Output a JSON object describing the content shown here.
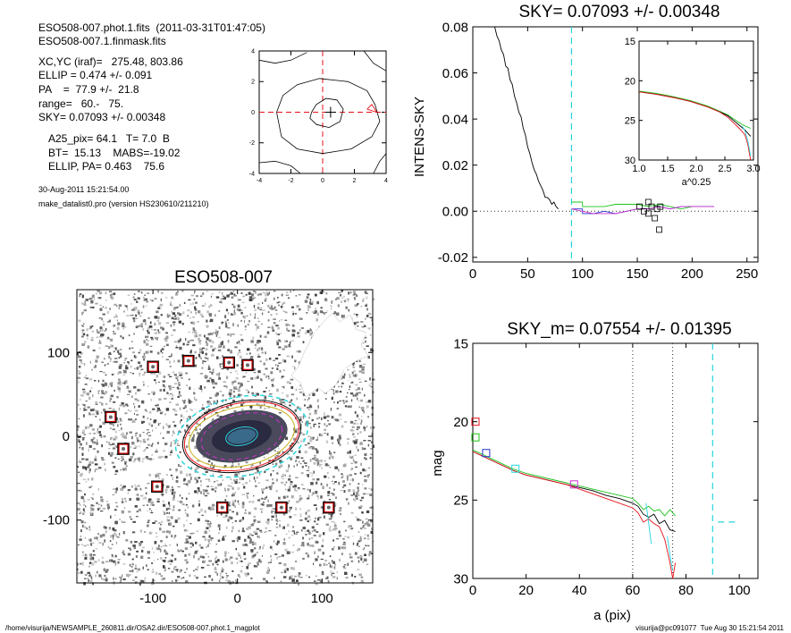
{
  "header": {
    "lines": [
      "ESO508-007.phot.1.fits  (2011-03-31T01:47:05)",
      "ESO508-007.1.finmask.fits"
    ],
    "params": [
      "XC,YC (iraf)=   275.48, 803.86",
      "ELLIP = 0.474 +/- 0.091",
      "PA    =  77.9 +/-  21.8",
      "range=   60.-   75.",
      "SKY= 0.07093 +/- 0.00348"
    ],
    "params2": [
      "A25_pix= 64.1   T= 7.0  B",
      "BT=  15.13    MABS=-19.02",
      "ELLIP, PA= 0.463    75.6"
    ],
    "date": "30-Aug-2011 15:21:54.00",
    "program": "make_datalist0.pro (version HS230610/211210)"
  },
  "footer": {
    "left": "/home/visurija/NEWSAMPLE_260811.dir/OSA2.dir/ESO508-007.phot.1_magplot",
    "right": "visurija@pc091077  Tue Aug 30 15:21:54 2011"
  },
  "colors": {
    "black": "#000000",
    "red": "#e8121b",
    "green": "#1bc41b",
    "cyan": "#27d5dd",
    "blue": "#2233cc",
    "magenta": "#cc33cc",
    "yellow": "#c8b21e",
    "gray": "#555555"
  },
  "chart_data": [
    {
      "id": "contour",
      "type": "contour",
      "title": "",
      "xlim": [
        -4,
        4
      ],
      "ylim": [
        -4,
        4
      ],
      "xticks": [
        "-4",
        "-2",
        "0",
        "2",
        "4"
      ],
      "yticks": [
        "-4",
        "-2",
        "0",
        "2",
        "4"
      ],
      "center": [
        0.5,
        0.0
      ],
      "crosshair": [
        0,
        0
      ],
      "contours": [
        {
          "level": "inner",
          "points": [
            [
              -0.7,
              0
            ],
            [
              -0.4,
              0.5
            ],
            [
              0.2,
              0.9
            ],
            [
              0.9,
              0.8
            ],
            [
              1.3,
              0.2
            ],
            [
              1.1,
              -0.6
            ],
            [
              0.4,
              -1.0
            ],
            [
              -0.4,
              -0.8
            ],
            [
              -0.8,
              -0.4
            ]
          ]
        },
        {
          "level": "mid",
          "points": [
            [
              -2.9,
              0
            ],
            [
              -2.5,
              1.1
            ],
            [
              -1.6,
              1.8
            ],
            [
              -0.2,
              2.2
            ],
            [
              1.6,
              2.0
            ],
            [
              2.8,
              1.4
            ],
            [
              3.3,
              0.5
            ],
            [
              3.6,
              -0.6
            ],
            [
              3.1,
              -1.6
            ],
            [
              1.8,
              -2.4
            ],
            [
              0,
              -2.7
            ],
            [
              -1.6,
              -2.4
            ],
            [
              -2.6,
              -1.6
            ]
          ]
        },
        {
          "level": "outer-top",
          "points": [
            [
              -4,
              3.4
            ],
            [
              -3,
              3.2
            ],
            [
              -2,
              3.4
            ],
            [
              -1,
              3.9
            ]
          ]
        },
        {
          "level": "outer-bottom",
          "points": [
            [
              -4,
              -3.3
            ],
            [
              -3,
              -3.2
            ],
            [
              -2,
              -3.5
            ],
            [
              -1.4,
              -4
            ]
          ]
        },
        {
          "level": "outer-right-top",
          "points": [
            [
              2.6,
              4
            ],
            [
              3.2,
              3.2
            ],
            [
              4,
              2.7
            ]
          ]
        },
        {
          "level": "outer-right-bottom",
          "points": [
            [
              3.2,
              -4
            ],
            [
              3.6,
              -3.2
            ],
            [
              4,
              -2.7
            ]
          ]
        }
      ],
      "peak": [
        [
          2.8,
          0.2
        ],
        [
          3.1,
          0.5
        ],
        [
          3.4,
          0.0
        ],
        [
          2.8,
          0.2
        ]
      ]
    },
    {
      "id": "sky",
      "type": "line",
      "title": "SKY= 0.07093 +/- 0.00348",
      "xlabel": "",
      "ylabel": "INTENS-SKY",
      "xlim": [
        0,
        260
      ],
      "ylim": [
        -0.022,
        0.08
      ],
      "xticks": [
        "0",
        "50",
        "100",
        "150",
        "200",
        "250"
      ],
      "yticks": [
        "-0.02",
        "0.00",
        "0.02",
        "0.04",
        "0.06",
        "0.08"
      ],
      "reference_line_y": 0,
      "vline_x": 90,
      "series": [
        {
          "color": "black",
          "x": [
            20,
            22,
            24,
            26,
            28,
            30,
            32,
            34,
            36,
            38,
            40,
            42,
            44,
            46,
            48,
            50,
            52,
            54,
            56,
            58,
            60,
            62,
            64,
            66,
            68,
            70,
            72,
            74,
            76,
            78
          ],
          "y": [
            0.08,
            0.076,
            0.074,
            0.07,
            0.068,
            0.063,
            0.062,
            0.057,
            0.055,
            0.05,
            0.047,
            0.043,
            0.041,
            0.036,
            0.033,
            0.028,
            0.025,
            0.021,
            0.018,
            0.016,
            0.013,
            0.011,
            0.009,
            0.006,
            0.006,
            0.005,
            0.003,
            0.004,
            0.002,
            0.001
          ]
        },
        {
          "color": "green",
          "x": [
            90,
            100,
            100,
            110,
            120,
            130,
            140,
            150,
            160,
            170,
            180,
            190,
            200,
            210,
            220
          ],
          "y": [
            0.004,
            0.004,
            0.002,
            0.002,
            0.002,
            0.003,
            0.003,
            0.003,
            0.002,
            0.003,
            0.002,
            0.001,
            0.002,
            0.002,
            0.002
          ]
        },
        {
          "color": "blue",
          "x": [
            90,
            100,
            100,
            110,
            120,
            130,
            140,
            150,
            160,
            170,
            180,
            190,
            200,
            210,
            220
          ],
          "y": [
            0.001,
            0.001,
            -0.001,
            -0.001,
            0.0,
            -0.001,
            0.0,
            0.001,
            0.001,
            0.002,
            0.001,
            0.002,
            0.002,
            0.002,
            0.002
          ]
        },
        {
          "color": "magenta",
          "x": [
            90,
            100,
            110,
            120,
            130,
            140,
            150,
            160,
            170,
            180,
            190,
            200,
            210,
            220
          ],
          "y": [
            0.001,
            0.0,
            -0.001,
            -0.001,
            -0.001,
            0.0,
            0.001,
            0.001,
            0.002,
            0.001,
            0.002,
            0.002,
            0.002,
            0.002
          ]
        }
      ],
      "markers": [
        {
          "x": 152,
          "y": 0.002
        },
        {
          "x": 156,
          "y": 0.0
        },
        {
          "x": 160,
          "y": -0.001
        },
        {
          "x": 163,
          "y": 0.002
        },
        {
          "x": 166,
          "y": -0.003
        },
        {
          "x": 168,
          "y": 0.001
        },
        {
          "x": 171,
          "y": 0.002
        },
        {
          "x": 160,
          "y": 0.004
        },
        {
          "x": 170,
          "y": -0.008
        }
      ],
      "inset": {
        "xlabel": "a^0.25",
        "xlim": [
          1.0,
          3.0
        ],
        "ylim": [
          15,
          30
        ],
        "xticks": [
          "1.0",
          "1.5",
          "2.0",
          "2.5",
          "3.0"
        ],
        "yticks": [
          "15",
          "20",
          "25",
          "30"
        ],
        "series": [
          {
            "color": "green",
            "x": [
              1.0,
              1.3,
              1.6,
              1.9,
              2.2,
              2.4,
              2.55,
              2.65,
              2.75,
              2.85,
              2.95
            ],
            "y": [
              21.3,
              21.6,
              22.0,
              22.5,
              23.2,
              23.8,
              24.3,
              24.8,
              25.3,
              25.7,
              26.0
            ]
          },
          {
            "color": "black",
            "x": [
              1.0,
              1.3,
              1.6,
              1.9,
              2.2,
              2.4,
              2.55,
              2.65,
              2.75,
              2.85,
              2.95
            ],
            "y": [
              21.4,
              21.7,
              22.1,
              22.6,
              23.3,
              23.9,
              24.4,
              25.0,
              25.6,
              26.2,
              27.0
            ]
          },
          {
            "color": "red",
            "x": [
              1.0,
              1.3,
              1.6,
              1.9,
              2.2,
              2.4,
              2.55,
              2.65,
              2.75,
              2.85,
              2.9,
              2.95
            ],
            "y": [
              21.4,
              21.7,
              22.1,
              22.6,
              23.3,
              23.9,
              24.6,
              25.3,
              26.0,
              26.8,
              28.0,
              30.0
            ]
          },
          {
            "color": "cyan",
            "x": [
              2.8,
              2.85,
              2.9,
              2.95
            ],
            "y": [
              25.7,
              26.3,
              27.5,
              29.5
            ]
          }
        ]
      }
    },
    {
      "id": "image",
      "type": "scatter",
      "title": "ESO508-007",
      "xlim": [
        -190,
        160
      ],
      "ylim": [
        -175,
        175
      ],
      "xticks": [
        "-100",
        "0",
        "100"
      ],
      "yticks": [
        "-100",
        "0",
        "100"
      ],
      "galaxy_center": [
        5,
        0
      ],
      "star_markers": [
        [
          -100,
          83
        ],
        [
          -58,
          90
        ],
        [
          -10,
          88
        ],
        [
          12,
          85
        ],
        [
          -150,
          23
        ],
        [
          -135,
          -15
        ],
        [
          -95,
          -60
        ],
        [
          -18,
          -85
        ],
        [
          52,
          -85
        ],
        [
          108,
          -85
        ]
      ],
      "isophotes": [
        {
          "color": "cyan",
          "a": 75,
          "b": 44,
          "dash": true
        },
        {
          "color": "black",
          "a": 67,
          "b": 39,
          "dash": false
        },
        {
          "color": "red",
          "a": 65,
          "b": 37,
          "dash": false
        },
        {
          "color": "yellow",
          "a": 60,
          "b": 33,
          "dash": false
        },
        {
          "color": "magenta",
          "a": 46,
          "b": 25,
          "dash": true
        },
        {
          "color": "cyan",
          "a": 18,
          "b": 10,
          "dash": false
        }
      ]
    },
    {
      "id": "mag",
      "type": "line",
      "title": "SKY_m=  0.07554 +/- 0.01395",
      "xlabel": "a (pix)",
      "ylabel": "mag",
      "xlim": [
        0,
        107
      ],
      "ylim": [
        15,
        30
      ],
      "xticks": [
        "0",
        "20",
        "40",
        "60",
        "80",
        "100"
      ],
      "yticks": [
        "15",
        "20",
        "25",
        "30"
      ],
      "vlines_dotted": [
        60,
        75
      ],
      "vline_dashed": 90,
      "hline_dashed": {
        "y": 26.4,
        "x": [
          92,
          100
        ]
      },
      "series": [
        {
          "color": "green",
          "x": [
            0,
            5,
            10,
            15,
            20,
            25,
            30,
            35,
            40,
            45,
            50,
            55,
            60,
            62,
            64,
            66,
            68,
            70,
            72,
            74,
            76
          ],
          "y": [
            21.8,
            22.2,
            22.6,
            23.0,
            23.3,
            23.5,
            23.7,
            23.9,
            24.1,
            24.3,
            24.5,
            24.7,
            24.9,
            25.2,
            25.6,
            25.4,
            25.7,
            25.6,
            26.0,
            25.6,
            26.0
          ]
        },
        {
          "color": "black",
          "x": [
            0,
            5,
            10,
            15,
            20,
            25,
            30,
            35,
            40,
            45,
            50,
            55,
            60,
            62,
            64,
            66,
            68,
            70,
            72,
            74,
            76
          ],
          "y": [
            21.9,
            22.3,
            22.7,
            23.1,
            23.4,
            23.6,
            23.8,
            24.0,
            24.2,
            24.4,
            24.7,
            24.9,
            25.2,
            25.4,
            25.9,
            26.1,
            25.9,
            26.5,
            26.3,
            26.9,
            27.0
          ]
        },
        {
          "color": "red",
          "x": [
            0,
            5,
            10,
            15,
            20,
            25,
            30,
            35,
            40,
            45,
            50,
            55,
            60,
            62,
            64,
            66,
            68,
            70,
            72,
            74,
            75,
            76
          ],
          "y": [
            21.9,
            22.3,
            22.7,
            23.1,
            23.4,
            23.6,
            23.8,
            24.0,
            24.3,
            24.6,
            24.9,
            25.2,
            25.5,
            25.8,
            26.4,
            26.2,
            26.5,
            26.7,
            27.5,
            29.0,
            30.0,
            29.0
          ]
        },
        {
          "color": "cyan",
          "x": [
            65,
            66,
            67
          ],
          "y": [
            25.2,
            26.5,
            27.8
          ]
        },
        {
          "color": "cyan",
          "x": [
            73,
            74,
            75
          ],
          "y": [
            27.3,
            28.5,
            29.5
          ]
        }
      ],
      "markers": [
        {
          "x": 1,
          "y": 20.0,
          "color": "red"
        },
        {
          "x": 1,
          "y": 21.0,
          "color": "green"
        },
        {
          "x": 5,
          "y": 22.0,
          "color": "blue"
        },
        {
          "x": 16,
          "y": 23.0,
          "color": "cyan"
        },
        {
          "x": 38,
          "y": 24.0,
          "color": "magenta"
        }
      ]
    }
  ]
}
